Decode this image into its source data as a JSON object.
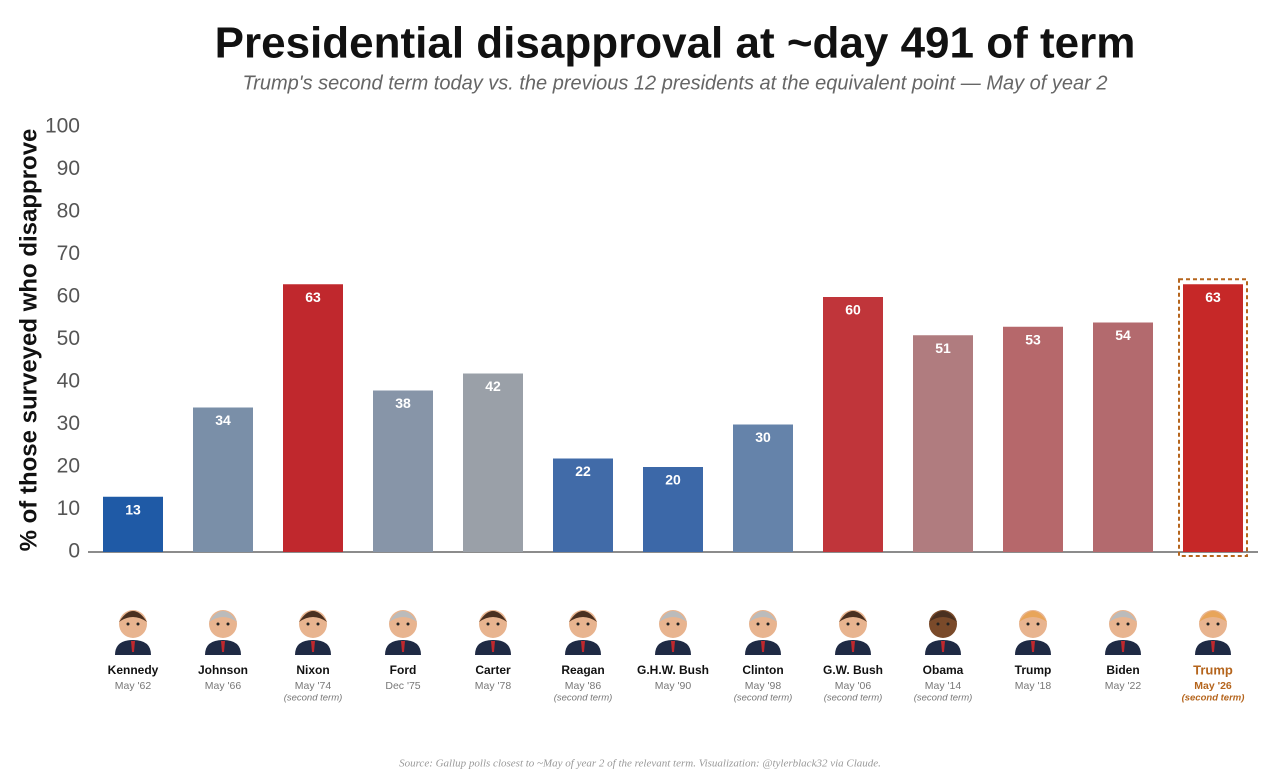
{
  "chart_data": {
    "type": "bar",
    "title": "Presidential disapproval at ~day 491 of term",
    "subtitle": "Trump's second term today vs. the previous 12 presidents at the equivalent point — May of year 2",
    "y_label": "% of those surveyed who disapprove",
    "source": "Source: Gallup polls closest to ~May of year 2 of the relevant term. Visualization: @tylerblack32 via Claude.",
    "categories": [
      "Kennedy",
      "Johnson",
      "Nixon",
      "Ford",
      "Carter",
      "Reagan",
      "G.H.W. Bush",
      "Clinton",
      "G.W. Bush",
      "Obama",
      "Trump",
      "Biden",
      "Trump"
    ],
    "dates": [
      "May '62",
      "May '66",
      "May '74",
      "Dec '75",
      "May '78",
      "May '86",
      "May '90",
      "May '98",
      "May '06",
      "May '14",
      "May '18",
      "May '22",
      "May '26"
    ],
    "notes": [
      null,
      null,
      "(second term)",
      null,
      null,
      "(second term)",
      null,
      "(second term)",
      "(second term)",
      "(second term)",
      null,
      null,
      "(second term)"
    ],
    "values": [
      13,
      34,
      63,
      38,
      42,
      22,
      20,
      30,
      60,
      51,
      53,
      54,
      63
    ],
    "colors": [
      "#1f5aa6",
      "#7a8fa8",
      "#c0282d",
      "#8795a8",
      "#9aa0a8",
      "#416ba8",
      "#3c68a8",
      "#6583aa",
      "#c0353a",
      "#b07c7f",
      "#b6686b",
      "#b36a6e",
      "#c62828"
    ],
    "highlight": 12,
    "highlight_color": "#b5651d",
    "ylim": [
      0,
      100
    ],
    "yticks": [
      0,
      10,
      20,
      30,
      40,
      50,
      60,
      70,
      80,
      90,
      100
    ]
  }
}
